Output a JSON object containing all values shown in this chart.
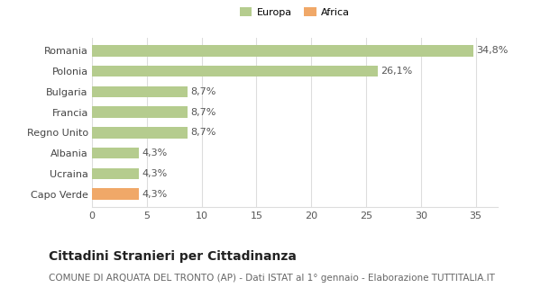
{
  "categories": [
    "Romania",
    "Polonia",
    "Bulgaria",
    "Francia",
    "Regno Unito",
    "Albania",
    "Ucraina",
    "Capo Verde"
  ],
  "values": [
    34.8,
    26.1,
    8.7,
    8.7,
    8.7,
    4.3,
    4.3,
    4.3
  ],
  "labels": [
    "34,8%",
    "26,1%",
    "8,7%",
    "8,7%",
    "8,7%",
    "4,3%",
    "4,3%",
    "4,3%"
  ],
  "colors": [
    "#b5cc8e",
    "#b5cc8e",
    "#b5cc8e",
    "#b5cc8e",
    "#b5cc8e",
    "#b5cc8e",
    "#b5cc8e",
    "#f0a868"
  ],
  "legend": [
    {
      "label": "Europa",
      "color": "#b5cc8e"
    },
    {
      "label": "Africa",
      "color": "#f0a868"
    }
  ],
  "xlim": [
    0,
    37
  ],
  "xticks": [
    0,
    5,
    10,
    15,
    20,
    25,
    30,
    35
  ],
  "title": "Cittadini Stranieri per Cittadinanza",
  "subtitle": "COMUNE DI ARQUATA DEL TRONTO (AP) - Dati ISTAT al 1° gennaio - Elaborazione TUTTITALIA.IT",
  "background_color": "#ffffff",
  "grid_color": "#dddddd",
  "bar_height": 0.55,
  "label_fontsize": 8,
  "ytick_fontsize": 8,
  "xtick_fontsize": 8,
  "title_fontsize": 10,
  "subtitle_fontsize": 7.5
}
